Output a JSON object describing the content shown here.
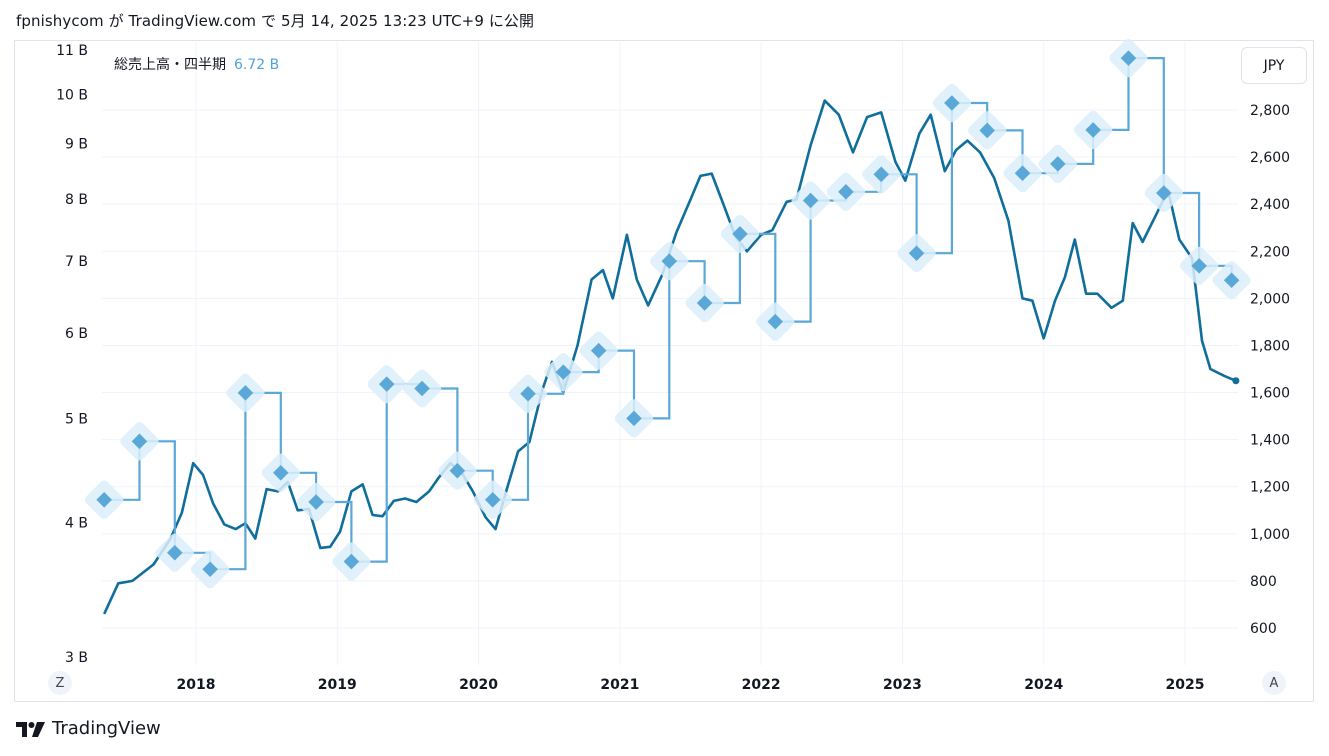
{
  "header": {
    "text": "fpnishycom が TradingView.com で 5月 14, 2025 13:23 UTC+9 に公開"
  },
  "legend": {
    "label": "総売上高・四半期",
    "value": "6.72 B"
  },
  "currency_button": "JPY",
  "scale_buttons": {
    "left": "Z",
    "right": "A"
  },
  "footer": {
    "brand": "TradingView"
  },
  "colors": {
    "price_line": "#0f6e9b",
    "revenue_line": "#5aa8d8",
    "revenue_halo": "#dceefa",
    "grid": "#f0f3fa"
  },
  "chart_data": {
    "type": "line",
    "left_axis": {
      "ticks": [
        "11 B",
        "10 B",
        "9 B",
        "8 B",
        "7 B",
        "6 B",
        "5 B",
        "4 B",
        "3 B"
      ],
      "tick_values": [
        11,
        10,
        9,
        8,
        7,
        6,
        5,
        4,
        3
      ],
      "scale": "log"
    },
    "right_axis": {
      "ticks": [
        "2,800",
        "2,600",
        "2,400",
        "2,200",
        "2,000",
        "1,800",
        "1,600",
        "1,400",
        "1,200",
        "1,000",
        "800",
        "600"
      ],
      "tick_values": [
        2800,
        2600,
        2400,
        2200,
        2000,
        1800,
        1600,
        1400,
        1200,
        1000,
        800,
        600
      ]
    },
    "x_axis": {
      "ticks": [
        "2018",
        "2019",
        "2020",
        "2021",
        "2022",
        "2023",
        "2024",
        "2025"
      ],
      "tick_values": [
        2018,
        2019,
        2020,
        2021,
        2022,
        2023,
        2024,
        2025
      ]
    },
    "series": [
      {
        "axis": "right",
        "style": "line",
        "points": [
          [
            2017.35,
            660
          ],
          [
            2017.45,
            790
          ],
          [
            2017.55,
            800
          ],
          [
            2017.7,
            870
          ],
          [
            2017.82,
            980
          ],
          [
            2017.9,
            1090
          ],
          [
            2017.98,
            1300
          ],
          [
            2018.05,
            1250
          ],
          [
            2018.12,
            1130
          ],
          [
            2018.2,
            1040
          ],
          [
            2018.28,
            1020
          ],
          [
            2018.35,
            1045
          ],
          [
            2018.42,
            980
          ],
          [
            2018.5,
            1190
          ],
          [
            2018.58,
            1180
          ],
          [
            2018.65,
            1220
          ],
          [
            2018.72,
            1100
          ],
          [
            2018.8,
            1105
          ],
          [
            2018.88,
            940
          ],
          [
            2018.95,
            945
          ],
          [
            2019.02,
            1010
          ],
          [
            2019.1,
            1180
          ],
          [
            2019.18,
            1210
          ],
          [
            2019.25,
            1080
          ],
          [
            2019.32,
            1075
          ],
          [
            2019.4,
            1140
          ],
          [
            2019.48,
            1150
          ],
          [
            2019.56,
            1135
          ],
          [
            2019.65,
            1180
          ],
          [
            2019.72,
            1240
          ],
          [
            2019.8,
            1300
          ],
          [
            2019.88,
            1260
          ],
          [
            2019.96,
            1180
          ],
          [
            2020.05,
            1070
          ],
          [
            2020.12,
            1020
          ],
          [
            2020.2,
            1190
          ],
          [
            2020.28,
            1350
          ],
          [
            2020.36,
            1390
          ],
          [
            2020.45,
            1610
          ],
          [
            2020.52,
            1730
          ],
          [
            2020.6,
            1600
          ],
          [
            2020.7,
            1800
          ],
          [
            2020.8,
            2080
          ],
          [
            2020.88,
            2120
          ],
          [
            2020.95,
            2000
          ],
          [
            2021.05,
            2270
          ],
          [
            2021.12,
            2080
          ],
          [
            2021.2,
            1970
          ],
          [
            2021.3,
            2100
          ],
          [
            2021.4,
            2280
          ],
          [
            2021.5,
            2420
          ],
          [
            2021.57,
            2520
          ],
          [
            2021.65,
            2530
          ],
          [
            2021.72,
            2420
          ],
          [
            2021.82,
            2260
          ],
          [
            2021.9,
            2200
          ],
          [
            2022.0,
            2270
          ],
          [
            2022.08,
            2290
          ],
          [
            2022.18,
            2410
          ],
          [
            2022.25,
            2420
          ],
          [
            2022.35,
            2650
          ],
          [
            2022.45,
            2840
          ],
          [
            2022.55,
            2780
          ],
          [
            2022.65,
            2620
          ],
          [
            2022.75,
            2770
          ],
          [
            2022.85,
            2790
          ],
          [
            2022.95,
            2580
          ],
          [
            2023.02,
            2500
          ],
          [
            2023.12,
            2700
          ],
          [
            2023.2,
            2780
          ],
          [
            2023.3,
            2540
          ],
          [
            2023.38,
            2630
          ],
          [
            2023.46,
            2670
          ],
          [
            2023.55,
            2620
          ],
          [
            2023.65,
            2510
          ],
          [
            2023.75,
            2330
          ],
          [
            2023.85,
            2000
          ],
          [
            2023.92,
            1990
          ],
          [
            2024.0,
            1830
          ],
          [
            2024.08,
            1990
          ],
          [
            2024.15,
            2090
          ],
          [
            2024.22,
            2250
          ],
          [
            2024.3,
            2020
          ],
          [
            2024.38,
            2020
          ],
          [
            2024.48,
            1960
          ],
          [
            2024.56,
            1990
          ],
          [
            2024.63,
            2320
          ],
          [
            2024.7,
            2240
          ],
          [
            2024.8,
            2360
          ],
          [
            2024.88,
            2460
          ],
          [
            2024.96,
            2250
          ],
          [
            2025.05,
            2170
          ],
          [
            2025.12,
            1820
          ],
          [
            2025.18,
            1700
          ],
          [
            2025.28,
            1670
          ],
          [
            2025.36,
            1650
          ]
        ]
      },
      {
        "axis": "left",
        "style": "step-diamond",
        "points": [
          [
            2017.35,
            4.2
          ],
          [
            2017.6,
            4.76
          ],
          [
            2017.85,
            3.75
          ],
          [
            2018.1,
            3.62
          ],
          [
            2018.35,
            5.28
          ],
          [
            2018.6,
            4.45
          ],
          [
            2018.85,
            4.18
          ],
          [
            2019.1,
            3.68
          ],
          [
            2019.35,
            5.38
          ],
          [
            2019.6,
            5.33
          ],
          [
            2019.85,
            4.47
          ],
          [
            2020.1,
            4.2
          ],
          [
            2020.35,
            5.27
          ],
          [
            2020.6,
            5.52
          ],
          [
            2020.85,
            5.78
          ],
          [
            2021.1,
            5.0
          ],
          [
            2021.35,
            7.0
          ],
          [
            2021.6,
            6.4
          ],
          [
            2021.85,
            7.42
          ],
          [
            2022.1,
            6.15
          ],
          [
            2022.35,
            7.97
          ],
          [
            2022.6,
            8.12
          ],
          [
            2022.85,
            8.43
          ],
          [
            2023.1,
            7.12
          ],
          [
            2023.35,
            9.82
          ],
          [
            2023.6,
            9.26
          ],
          [
            2023.85,
            8.45
          ],
          [
            2024.1,
            8.62
          ],
          [
            2024.35,
            9.27
          ],
          [
            2024.6,
            10.81
          ],
          [
            2024.85,
            8.1
          ],
          [
            2025.1,
            6.93
          ],
          [
            2025.33,
            6.72
          ]
        ]
      }
    ]
  }
}
